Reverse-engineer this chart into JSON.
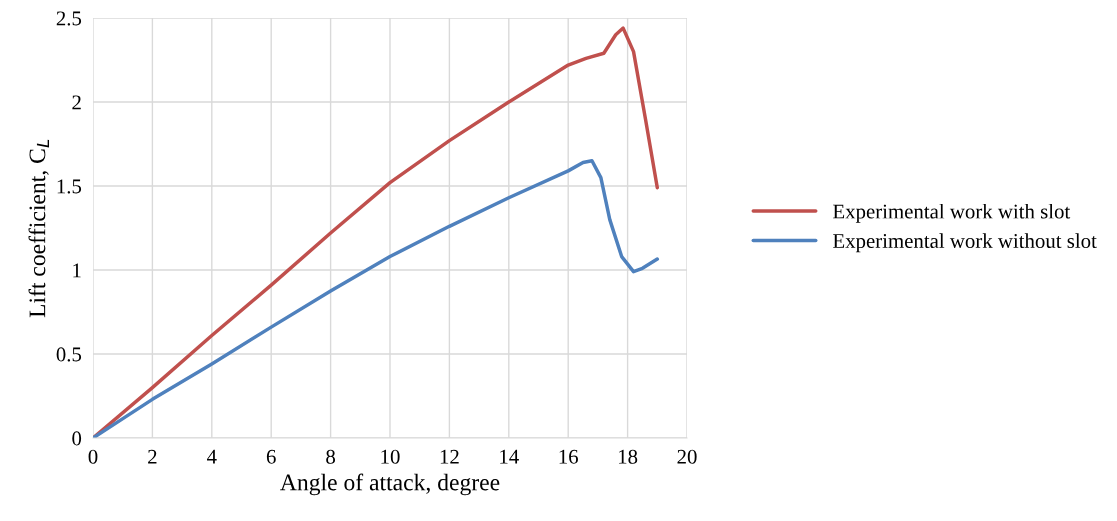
{
  "chart_data": {
    "type": "line",
    "xlabel": "Angle of attack, degree",
    "ylabel": "Lift coefficient, C$_{L}$",
    "series": [
      {
        "name": "Experimental work with slot",
        "color": "#c0504d",
        "x": [
          0,
          2,
          4,
          6,
          8,
          10,
          12,
          14,
          16,
          16.6,
          17.2,
          17.6,
          17.85,
          18.2,
          18.6,
          19
        ],
        "values": [
          0,
          0.3,
          0.61,
          0.91,
          1.22,
          1.52,
          1.77,
          2.0,
          2.22,
          2.26,
          2.29,
          2.4,
          2.44,
          2.3,
          1.9,
          1.49
        ]
      },
      {
        "name": "Experimental work without slot",
        "color": "#4f81bd",
        "x": [
          0,
          2,
          4,
          6,
          8,
          10,
          12,
          14,
          16,
          16.5,
          16.8,
          17.1,
          17.4,
          17.8,
          18.2,
          18.5,
          19
        ],
        "values": [
          0,
          0.23,
          0.44,
          0.66,
          0.875,
          1.08,
          1.26,
          1.43,
          1.59,
          1.64,
          1.65,
          1.55,
          1.3,
          1.08,
          0.99,
          1.01,
          1.065
        ]
      }
    ],
    "xlim": [
      0,
      20
    ],
    "xticks": [
      0,
      2,
      4,
      6,
      8,
      10,
      12,
      14,
      16,
      18,
      20
    ],
    "ylim": [
      0,
      2.5
    ],
    "yticks": [
      0,
      0.5,
      1,
      1.5,
      2,
      2.5
    ],
    "grid": true,
    "legend": "right",
    "marker": "none",
    "line_style": "solid"
  }
}
